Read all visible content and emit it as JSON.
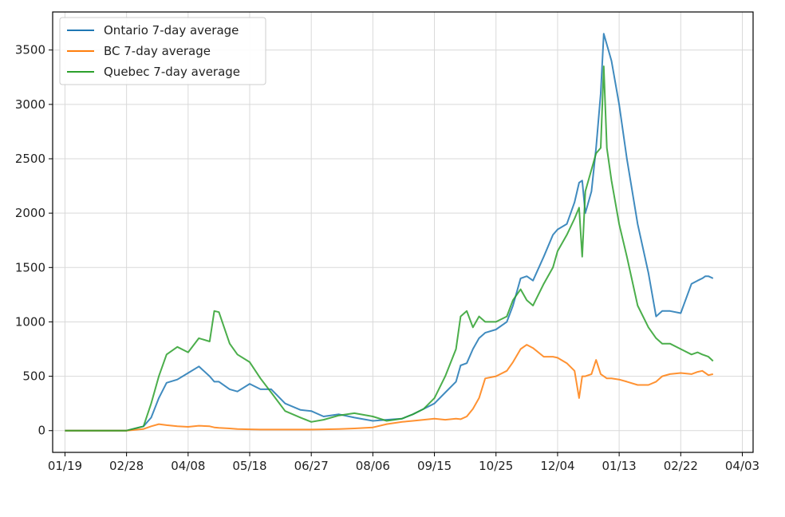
{
  "chart_data": {
    "type": "line",
    "title": "",
    "xlabel": "",
    "ylabel": "",
    "grid": true,
    "legend_position": "top-left",
    "x_ticks": [
      "01/19",
      "02/28",
      "04/08",
      "05/18",
      "06/27",
      "08/06",
      "09/15",
      "10/25",
      "12/04",
      "01/13",
      "02/22",
      "04/03"
    ],
    "xlim_days": [
      -8,
      447
    ],
    "ylim": [
      -200,
      3850
    ],
    "y_ticks": [
      0,
      500,
      1000,
      1500,
      2000,
      2500,
      3000,
      3500
    ],
    "x_dates": [
      "2020-01-19",
      "2020-02-28",
      "2020-03-10",
      "2020-03-15",
      "2020-03-20",
      "2020-03-25",
      "2020-04-01",
      "2020-04-08",
      "2020-04-15",
      "2020-04-22",
      "2020-04-25",
      "2020-04-28",
      "2020-05-05",
      "2020-05-10",
      "2020-05-18",
      "2020-05-25",
      "2020-06-01",
      "2020-06-10",
      "2020-06-20",
      "2020-06-27",
      "2020-07-05",
      "2020-07-15",
      "2020-07-25",
      "2020-08-06",
      "2020-08-15",
      "2020-08-25",
      "2020-09-01",
      "2020-09-08",
      "2020-09-15",
      "2020-09-22",
      "2020-09-29",
      "2020-10-02",
      "2020-10-06",
      "2020-10-10",
      "2020-10-14",
      "2020-10-18",
      "2020-10-25",
      "2020-11-01",
      "2020-11-05",
      "2020-11-10",
      "2020-11-14",
      "2020-11-18",
      "2020-11-25",
      "2020-12-01",
      "2020-12-04",
      "2020-12-10",
      "2020-12-15",
      "2020-12-18",
      "2020-12-20",
      "2020-12-22",
      "2020-12-26",
      "2020-12-29",
      "2021-01-01",
      "2021-01-03",
      "2021-01-05",
      "2021-01-08",
      "2021-01-13",
      "2021-01-18",
      "2021-01-25",
      "2021-02-01",
      "2021-02-06",
      "2021-02-10",
      "2021-02-15",
      "2021-02-22",
      "2021-03-01",
      "2021-03-05",
      "2021-03-08",
      "2021-03-10",
      "2021-03-12",
      "2021-03-15"
    ],
    "series": [
      {
        "name": "Ontario 7-day average",
        "color": "#1f77b4",
        "values": [
          0,
          0,
          40,
          120,
          300,
          440,
          470,
          530,
          590,
          500,
          450,
          450,
          380,
          360,
          430,
          380,
          380,
          250,
          190,
          180,
          130,
          150,
          120,
          90,
          100,
          110,
          150,
          200,
          250,
          350,
          450,
          600,
          620,
          750,
          850,
          900,
          930,
          1000,
          1150,
          1400,
          1420,
          1380,
          1600,
          1800,
          1850,
          1900,
          2100,
          2280,
          2300,
          2000,
          2200,
          2600,
          3100,
          3650,
          3550,
          3400,
          3000,
          2500,
          1900,
          1450,
          1050,
          1100,
          1100,
          1080,
          1350,
          1380,
          1400,
          1420,
          1420,
          1400
        ]
      },
      {
        "name": "BC 7-day average",
        "color": "#ff7f0e",
        "values": [
          0,
          0,
          15,
          40,
          60,
          50,
          40,
          35,
          45,
          40,
          30,
          25,
          20,
          15,
          12,
          10,
          10,
          10,
          10,
          10,
          12,
          15,
          20,
          30,
          60,
          80,
          90,
          100,
          110,
          100,
          110,
          105,
          130,
          200,
          300,
          480,
          500,
          550,
          630,
          750,
          790,
          760,
          680,
          680,
          670,
          620,
          550,
          300,
          500,
          500,
          520,
          650,
          520,
          500,
          480,
          480,
          470,
          450,
          420,
          420,
          450,
          500,
          520,
          530,
          520,
          540,
          550,
          530,
          510,
          520
        ]
      },
      {
        "name": "Quebec 7-day average",
        "color": "#2ca02c",
        "values": [
          0,
          0,
          40,
          250,
          500,
          700,
          770,
          720,
          850,
          820,
          1100,
          1090,
          800,
          700,
          630,
          480,
          350,
          180,
          120,
          80,
          100,
          140,
          160,
          130,
          90,
          110,
          150,
          200,
          300,
          500,
          750,
          1050,
          1100,
          950,
          1050,
          1000,
          1000,
          1050,
          1200,
          1300,
          1200,
          1150,
          1350,
          1500,
          1650,
          1800,
          1950,
          2050,
          1600,
          2200,
          2400,
          2550,
          2600,
          3350,
          2600,
          2300,
          1900,
          1600,
          1150,
          950,
          850,
          800,
          800,
          750,
          700,
          720,
          700,
          690,
          680,
          640
        ]
      }
    ]
  }
}
